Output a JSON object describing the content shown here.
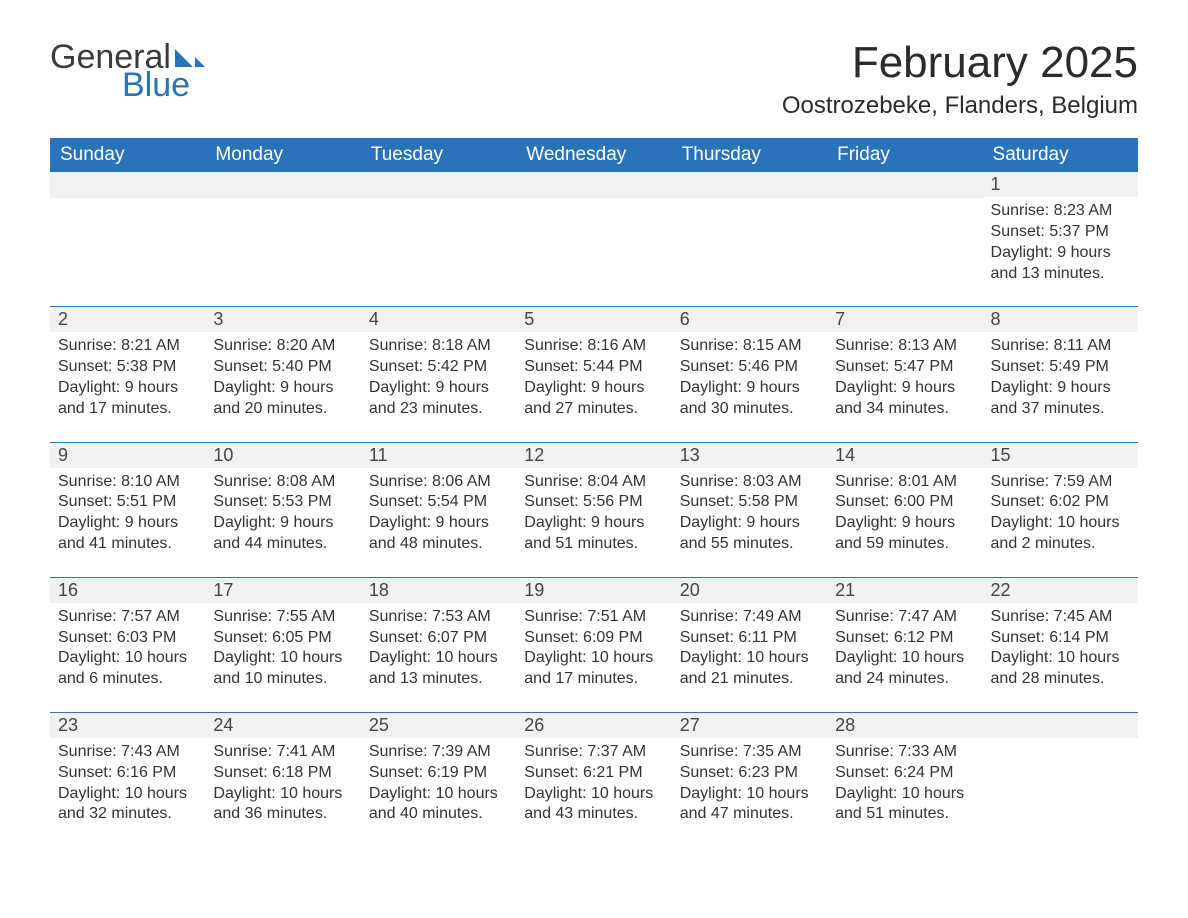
{
  "logo": {
    "line1": "General",
    "line2": "Blue"
  },
  "title": "February 2025",
  "location": "Oostrozebeke, Flanders, Belgium",
  "colors": {
    "header_bg": "#2a73b8",
    "header_text": "#ffffff",
    "daynum_bg": "#f1f1f1",
    "daynum_border": "#2a73b8",
    "body_text": "#333333",
    "page_bg": "#ffffff"
  },
  "fonts": {
    "title_size": 44,
    "location_size": 24,
    "header_size": 19,
    "daynum_size": 18,
    "body_size": 16
  },
  "day_headers": [
    "Sunday",
    "Monday",
    "Tuesday",
    "Wednesday",
    "Thursday",
    "Friday",
    "Saturday"
  ],
  "weeks": [
    [
      null,
      null,
      null,
      null,
      null,
      null,
      {
        "n": "1",
        "sunrise": "8:23 AM",
        "sunset": "5:37 PM",
        "dl_h": "9",
        "dl_m": "13"
      }
    ],
    [
      {
        "n": "2",
        "sunrise": "8:21 AM",
        "sunset": "5:38 PM",
        "dl_h": "9",
        "dl_m": "17"
      },
      {
        "n": "3",
        "sunrise": "8:20 AM",
        "sunset": "5:40 PM",
        "dl_h": "9",
        "dl_m": "20"
      },
      {
        "n": "4",
        "sunrise": "8:18 AM",
        "sunset": "5:42 PM",
        "dl_h": "9",
        "dl_m": "23"
      },
      {
        "n": "5",
        "sunrise": "8:16 AM",
        "sunset": "5:44 PM",
        "dl_h": "9",
        "dl_m": "27"
      },
      {
        "n": "6",
        "sunrise": "8:15 AM",
        "sunset": "5:46 PM",
        "dl_h": "9",
        "dl_m": "30"
      },
      {
        "n": "7",
        "sunrise": "8:13 AM",
        "sunset": "5:47 PM",
        "dl_h": "9",
        "dl_m": "34"
      },
      {
        "n": "8",
        "sunrise": "8:11 AM",
        "sunset": "5:49 PM",
        "dl_h": "9",
        "dl_m": "37"
      }
    ],
    [
      {
        "n": "9",
        "sunrise": "8:10 AM",
        "sunset": "5:51 PM",
        "dl_h": "9",
        "dl_m": "41"
      },
      {
        "n": "10",
        "sunrise": "8:08 AM",
        "sunset": "5:53 PM",
        "dl_h": "9",
        "dl_m": "44"
      },
      {
        "n": "11",
        "sunrise": "8:06 AM",
        "sunset": "5:54 PM",
        "dl_h": "9",
        "dl_m": "48"
      },
      {
        "n": "12",
        "sunrise": "8:04 AM",
        "sunset": "5:56 PM",
        "dl_h": "9",
        "dl_m": "51"
      },
      {
        "n": "13",
        "sunrise": "8:03 AM",
        "sunset": "5:58 PM",
        "dl_h": "9",
        "dl_m": "55"
      },
      {
        "n": "14",
        "sunrise": "8:01 AM",
        "sunset": "6:00 PM",
        "dl_h": "9",
        "dl_m": "59"
      },
      {
        "n": "15",
        "sunrise": "7:59 AM",
        "sunset": "6:02 PM",
        "dl_h": "10",
        "dl_m": "2"
      }
    ],
    [
      {
        "n": "16",
        "sunrise": "7:57 AM",
        "sunset": "6:03 PM",
        "dl_h": "10",
        "dl_m": "6"
      },
      {
        "n": "17",
        "sunrise": "7:55 AM",
        "sunset": "6:05 PM",
        "dl_h": "10",
        "dl_m": "10"
      },
      {
        "n": "18",
        "sunrise": "7:53 AM",
        "sunset": "6:07 PM",
        "dl_h": "10",
        "dl_m": "13"
      },
      {
        "n": "19",
        "sunrise": "7:51 AM",
        "sunset": "6:09 PM",
        "dl_h": "10",
        "dl_m": "17"
      },
      {
        "n": "20",
        "sunrise": "7:49 AM",
        "sunset": "6:11 PM",
        "dl_h": "10",
        "dl_m": "21"
      },
      {
        "n": "21",
        "sunrise": "7:47 AM",
        "sunset": "6:12 PM",
        "dl_h": "10",
        "dl_m": "24"
      },
      {
        "n": "22",
        "sunrise": "7:45 AM",
        "sunset": "6:14 PM",
        "dl_h": "10",
        "dl_m": "28"
      }
    ],
    [
      {
        "n": "23",
        "sunrise": "7:43 AM",
        "sunset": "6:16 PM",
        "dl_h": "10",
        "dl_m": "32"
      },
      {
        "n": "24",
        "sunrise": "7:41 AM",
        "sunset": "6:18 PM",
        "dl_h": "10",
        "dl_m": "36"
      },
      {
        "n": "25",
        "sunrise": "7:39 AM",
        "sunset": "6:19 PM",
        "dl_h": "10",
        "dl_m": "40"
      },
      {
        "n": "26",
        "sunrise": "7:37 AM",
        "sunset": "6:21 PM",
        "dl_h": "10",
        "dl_m": "43"
      },
      {
        "n": "27",
        "sunrise": "7:35 AM",
        "sunset": "6:23 PM",
        "dl_h": "10",
        "dl_m": "47"
      },
      {
        "n": "28",
        "sunrise": "7:33 AM",
        "sunset": "6:24 PM",
        "dl_h": "10",
        "dl_m": "51"
      },
      null
    ]
  ],
  "labels": {
    "sunrise": "Sunrise: ",
    "sunset": "Sunset: ",
    "daylight1": "Daylight: ",
    "daylight2": " hours and ",
    "daylight3": " minutes."
  }
}
